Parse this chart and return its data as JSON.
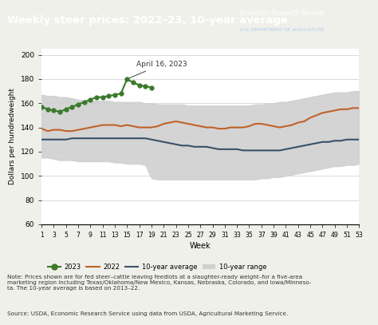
{
  "title": "Weekly steer prices: 2022–23, 10-year average",
  "title_bg_color": "#1a3a5c",
  "title_text_color": "#ffffff",
  "ylabel": "Dollars per hundredweight",
  "xlabel": "Week",
  "ylim": [
    60,
    205
  ],
  "yticks": [
    60,
    80,
    100,
    120,
    140,
    160,
    180,
    200
  ],
  "xticks": [
    1,
    3,
    5,
    7,
    9,
    11,
    13,
    15,
    17,
    19,
    21,
    23,
    25,
    27,
    29,
    31,
    33,
    35,
    37,
    39,
    41,
    43,
    45,
    47,
    49,
    51,
    53
  ],
  "annotation_text": "April 16, 2023",
  "note_text": "Note: Prices shown are for fed steer–cattle leaving feedlots at a slaughter-ready weight–for a five-area\nmarketing region including Texas/Oklahoma/New Mexico, Kansas, Nebraska, Colorado, and Iowa/Minneso-\nta. The 10-year average is based on 2013–22.",
  "source_text": "Source: USDA, Economic Research Service using data from USDA, Agricultural Marketing Service.",
  "weeks_2023": [
    1,
    2,
    3,
    4,
    5,
    6,
    7,
    8,
    9,
    10,
    11,
    12,
    13,
    14,
    15,
    16,
    17,
    18,
    19
  ],
  "values_2023": [
    157,
    155,
    154,
    153,
    155,
    157,
    159,
    161,
    163,
    165,
    165,
    166,
    167,
    168,
    180,
    177,
    175,
    174,
    173
  ],
  "weeks_2022": [
    1,
    2,
    3,
    4,
    5,
    6,
    7,
    8,
    9,
    10,
    11,
    12,
    13,
    14,
    15,
    16,
    17,
    18,
    19,
    20,
    21,
    22,
    23,
    24,
    25,
    26,
    27,
    28,
    29,
    30,
    31,
    32,
    33,
    34,
    35,
    36,
    37,
    38,
    39,
    40,
    41,
    42,
    43,
    44,
    45,
    46,
    47,
    48,
    49,
    50,
    51,
    52,
    53
  ],
  "values_2022": [
    139,
    137,
    138,
    138,
    137,
    137,
    138,
    139,
    140,
    141,
    142,
    142,
    142,
    141,
    142,
    141,
    140,
    140,
    140,
    141,
    143,
    144,
    145,
    144,
    143,
    142,
    141,
    140,
    140,
    139,
    139,
    140,
    140,
    140,
    141,
    143,
    143,
    142,
    141,
    140,
    141,
    142,
    144,
    145,
    148,
    150,
    152,
    153,
    154,
    155,
    155,
    156,
    156
  ],
  "weeks_avg": [
    1,
    2,
    3,
    4,
    5,
    6,
    7,
    8,
    9,
    10,
    11,
    12,
    13,
    14,
    15,
    16,
    17,
    18,
    19,
    20,
    21,
    22,
    23,
    24,
    25,
    26,
    27,
    28,
    29,
    30,
    31,
    32,
    33,
    34,
    35,
    36,
    37,
    38,
    39,
    40,
    41,
    42,
    43,
    44,
    45,
    46,
    47,
    48,
    49,
    50,
    51,
    52,
    53
  ],
  "values_avg": [
    130,
    130,
    130,
    130,
    130,
    131,
    131,
    131,
    131,
    131,
    131,
    131,
    131,
    131,
    131,
    131,
    131,
    131,
    130,
    129,
    128,
    127,
    126,
    125,
    125,
    124,
    124,
    124,
    123,
    122,
    122,
    122,
    122,
    121,
    121,
    121,
    121,
    121,
    121,
    121,
    122,
    123,
    124,
    125,
    126,
    127,
    128,
    128,
    129,
    129,
    130,
    130,
    130
  ],
  "values_range_low": [
    115,
    115,
    114,
    113,
    113,
    113,
    112,
    112,
    112,
    112,
    112,
    112,
    111,
    111,
    110,
    110,
    110,
    109,
    98,
    97,
    97,
    97,
    97,
    97,
    97,
    97,
    97,
    97,
    97,
    97,
    97,
    97,
    97,
    97,
    97,
    97,
    98,
    98,
    99,
    99,
    100,
    101,
    102,
    103,
    104,
    105,
    106,
    107,
    108,
    108,
    109,
    109,
    110
  ],
  "values_range_high": [
    167,
    166,
    166,
    165,
    165,
    164,
    163,
    162,
    162,
    162,
    162,
    162,
    161,
    161,
    161,
    161,
    161,
    160,
    160,
    159,
    159,
    159,
    159,
    159,
    158,
    158,
    158,
    158,
    158,
    158,
    158,
    158,
    158,
    158,
    158,
    159,
    159,
    160,
    160,
    161,
    161,
    162,
    163,
    164,
    165,
    166,
    167,
    168,
    169,
    169,
    169,
    170,
    170
  ],
  "color_2023": "#3a7a2a",
  "color_2022": "#c0622a",
  "color_avg": "#3a5068",
  "color_range": "#d0d0d0",
  "bg_color": "#f0f0eb",
  "plot_bg_color": "#ffffff",
  "legend_2023": "2023",
  "legend_2022": "2022",
  "legend_avg": "10-year average",
  "legend_range": "10-year range",
  "usda_line1": "Economic Research Service",
  "usda_line2": "U.S. DEPARTMENT OF AGRICULTURE"
}
